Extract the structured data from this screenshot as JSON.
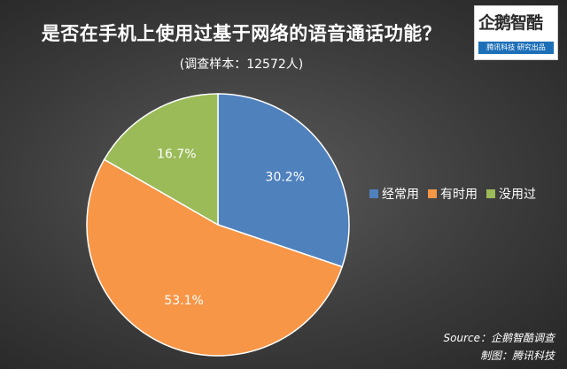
{
  "logo": {
    "main": "企鹅智酷",
    "sub": "腾讯科技 研究出品"
  },
  "chart_data": {
    "type": "pie",
    "title": "是否在手机上使用过基于网络的语音通话功能？",
    "subtitle": "(调查样本：12572人)",
    "slices": [
      {
        "label": "经常用",
        "value": 30.2,
        "display": "30.2%",
        "color": "#4f81bd"
      },
      {
        "label": "有时用",
        "value": 53.1,
        "display": "53.1%",
        "color": "#f79646"
      },
      {
        "label": "没用过",
        "value": 16.7,
        "display": "16.7%",
        "color": "#9bbb59"
      }
    ],
    "legend_position": "right",
    "source_line1": "Source：企鹅智酷调查",
    "source_line2": "制图：腾讯科技"
  }
}
